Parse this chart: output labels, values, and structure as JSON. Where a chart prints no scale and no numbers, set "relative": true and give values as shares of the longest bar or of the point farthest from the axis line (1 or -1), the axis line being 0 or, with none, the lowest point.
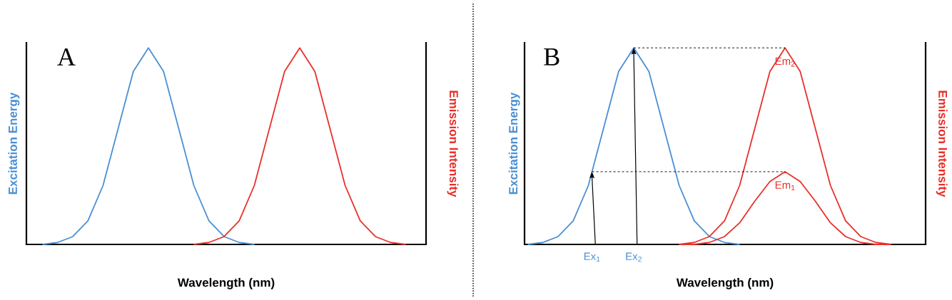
{
  "chart_data": [
    {
      "type": "line",
      "title": "A",
      "relative": true,
      "xlabel": "Wavelength (nm)",
      "ylabel": "Excitation Energy",
      "y2label": "Emission Intensity",
      "categories": [
        null,
        null,
        null,
        null,
        null,
        null,
        null,
        null,
        null,
        null,
        null,
        null,
        null,
        null,
        null,
        null,
        null,
        null,
        null,
        null,
        null,
        null,
        null,
        null,
        null,
        null,
        null
      ],
      "series": [
        {
          "color": "#4a8fd4",
          "values": [
            null,
            0,
            0.01,
            0.04,
            0.12,
            0.3,
            0.59,
            0.88,
            1,
            0.88,
            0.59,
            0.3,
            0.12,
            0.04,
            0.01,
            0,
            null,
            null,
            null,
            null,
            null,
            null,
            null,
            null,
            null,
            null,
            null
          ]
        },
        {
          "color": "#e8302a",
          "values": [
            null,
            null,
            null,
            null,
            null,
            null,
            null,
            null,
            null,
            null,
            null,
            0,
            0.01,
            0.04,
            0.12,
            0.3,
            0.59,
            0.88,
            1,
            0.88,
            0.59,
            0.3,
            0.12,
            0.04,
            0.01,
            0,
            null
          ]
        }
      ]
    },
    {
      "type": "line",
      "title": "B",
      "relative": true,
      "xlabel": "Wavelength (nm)",
      "ylabel": "Excitation Energy",
      "y2label": "Emission Intensity",
      "categories": [
        null,
        null,
        null,
        null,
        null,
        null,
        null,
        null,
        null,
        null,
        null,
        null,
        null,
        null,
        null,
        null,
        null,
        null,
        null,
        null,
        null,
        null,
        null,
        null,
        null,
        null,
        null
      ],
      "series": [
        {
          "color": "#4a8fd4",
          "values": [
            0,
            0.01,
            0.04,
            0.12,
            0.3,
            0.59,
            0.88,
            1,
            0.88,
            0.59,
            0.3,
            0.12,
            0.04,
            0.01,
            0,
            null,
            null,
            null,
            null,
            null,
            null,
            null,
            null,
            null,
            null,
            null,
            null
          ]
        },
        {
          "name": "Em$_{2}$",
          "color": "#e8302a",
          "values": [
            null,
            null,
            null,
            null,
            null,
            null,
            null,
            null,
            null,
            null,
            0,
            0.01,
            0.04,
            0.12,
            0.3,
            0.59,
            0.88,
            1,
            0.88,
            0.59,
            0.3,
            0.12,
            0.04,
            0.01,
            0,
            null,
            null
          ]
        },
        {
          "name": "Em$_{1}$",
          "color": "#e8302a",
          "values": [
            null,
            null,
            null,
            null,
            null,
            null,
            null,
            null,
            null,
            null,
            0,
            0,
            0.01,
            0.04,
            0.11,
            0.22,
            0.32,
            0.37,
            0.32,
            0.22,
            0.11,
            0.04,
            0.01,
            0,
            0,
            null,
            null
          ]
        }
      ],
      "annotations": [
        "Ex$_{1}$",
        "Ex$_{2}$"
      ]
    }
  ]
}
